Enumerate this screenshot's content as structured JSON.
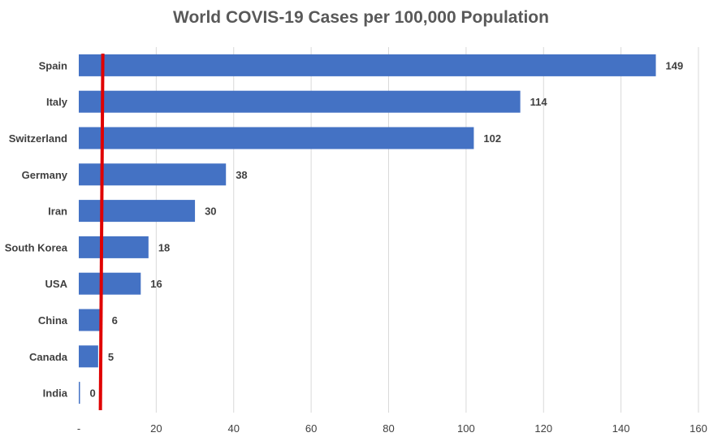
{
  "chart_data": {
    "type": "bar",
    "orientation": "horizontal",
    "title": "World COVIS-19 Cases per 100,000 Population",
    "xlabel": "",
    "ylabel": "",
    "categories": [
      "Spain",
      "Italy",
      "Switzerland",
      "Germany",
      "Iran",
      "South Korea",
      "USA",
      "China",
      "Canada",
      "India"
    ],
    "values": [
      149,
      114,
      102,
      38,
      30,
      18,
      16,
      6,
      5,
      0
    ],
    "data_labels": [
      "149",
      "114",
      "102",
      "38",
      "30",
      "18",
      "16",
      "6",
      "5",
      "0"
    ],
    "xlim": [
      0,
      160
    ],
    "x_ticks": [
      0,
      20,
      40,
      60,
      80,
      100,
      120,
      140,
      160
    ],
    "x_tick_labels": [
      "-",
      "20",
      "40",
      "60",
      "80",
      "100",
      "120",
      "140",
      "160"
    ],
    "grid": "vertical",
    "legend": "none",
    "reference_line": {
      "value": 6,
      "color": "#e00000"
    },
    "colors": {
      "bar": "#4472c4",
      "gridline": "#d9d9d9",
      "title": "#595959",
      "label": "#404040"
    }
  }
}
